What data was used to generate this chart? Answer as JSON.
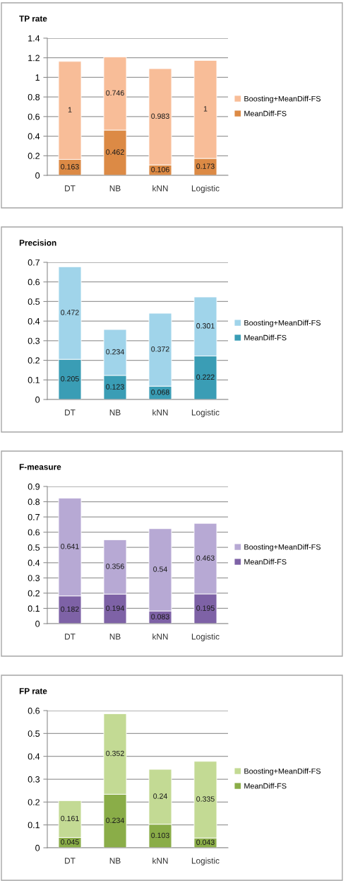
{
  "chart_data": [
    {
      "type": "bar",
      "stacked": true,
      "title": "TP rate",
      "categories": [
        "DT",
        "NB",
        "kNN",
        "Logistic"
      ],
      "series": [
        {
          "name": "MeanDiff-FS",
          "color": "#dc8a45",
          "values": [
            0.163,
            0.462,
            0.106,
            0.173
          ]
        },
        {
          "name": "Boosting+MeanDiff-FS",
          "color": "#f8bd98",
          "values": [
            1,
            0.746,
            0.983,
            1
          ]
        }
      ],
      "ylim": [
        0,
        1.4
      ],
      "yticks": [
        0,
        0.2,
        0.4,
        0.6,
        0.8,
        1,
        1.2,
        1.4
      ],
      "grid": "y",
      "legend": "right",
      "data_labels": true
    },
    {
      "type": "bar",
      "stacked": true,
      "title": "Precision",
      "categories": [
        "DT",
        "NB",
        "kNN",
        "Logistic"
      ],
      "series": [
        {
          "name": "MeanDiff-FS",
          "color": "#3a9db5",
          "values": [
            0.205,
            0.123,
            0.068,
            0.222
          ]
        },
        {
          "name": "Boosting+MeanDiff-FS",
          "color": "#a0d4ea",
          "values": [
            0.472,
            0.234,
            0.372,
            0.301
          ]
        }
      ],
      "ylim": [
        0,
        0.7
      ],
      "yticks": [
        0,
        0.1,
        0.2,
        0.3,
        0.4,
        0.5,
        0.6,
        0.7
      ],
      "grid": "y",
      "legend": "right",
      "data_labels": true
    },
    {
      "type": "bar",
      "stacked": true,
      "title": "F-measure",
      "categories": [
        "DT",
        "NB",
        "kNN",
        "Logistic"
      ],
      "series": [
        {
          "name": "MeanDiff-FS",
          "color": "#7e62a6",
          "values": [
            0.182,
            0.194,
            0.083,
            0.195
          ]
        },
        {
          "name": "Boosting+MeanDiff-FS",
          "color": "#b7a9d4",
          "values": [
            0.641,
            0.356,
            0.54,
            0.463
          ]
        }
      ],
      "ylim": [
        0,
        0.9
      ],
      "yticks": [
        0,
        0.1,
        0.2,
        0.3,
        0.4,
        0.5,
        0.6,
        0.7,
        0.8,
        0.9
      ],
      "grid": "y",
      "legend": "right",
      "data_labels": true
    },
    {
      "type": "bar",
      "stacked": true,
      "title": "FP rate",
      "categories": [
        "DT",
        "NB",
        "kNN",
        "Logistic"
      ],
      "series": [
        {
          "name": "MeanDiff-FS",
          "color": "#8aad48",
          "values": [
            0.045,
            0.234,
            0.103,
            0.043
          ]
        },
        {
          "name": "Boosting+MeanDiff-FS",
          "color": "#c3da94",
          "values": [
            0.161,
            0.352,
            0.24,
            0.335
          ]
        }
      ],
      "ylim": [
        0,
        0.6
      ],
      "yticks": [
        0,
        0.1,
        0.2,
        0.3,
        0.4,
        0.5,
        0.6
      ],
      "grid": "y",
      "legend": "right",
      "data_labels": true
    }
  ]
}
